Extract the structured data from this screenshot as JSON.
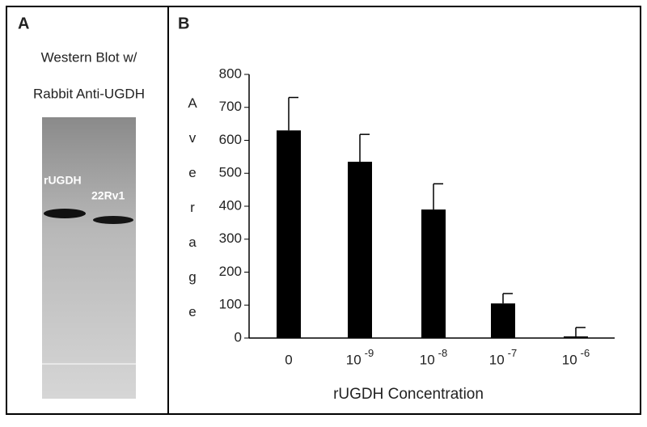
{
  "panel_a": {
    "label": "A",
    "title_lines": [
      "Western Blot w/",
      "Rabbit Anti-UGDH"
    ],
    "band_labels": [
      "rUGDH",
      "22Rv1"
    ]
  },
  "panel_b": {
    "label": "B"
  },
  "chart_data": {
    "type": "bar",
    "x_label": "rUGDH Concentration",
    "y_label": "Average",
    "categories": [
      "0",
      "10 -9",
      "10 -8",
      "10 -7",
      "10 -6"
    ],
    "values": [
      630,
      535,
      390,
      105,
      5
    ],
    "errors": [
      100,
      83,
      78,
      30,
      27
    ],
    "color": "#000000",
    "ylim": [
      0,
      800
    ],
    "yticks": [
      0,
      100,
      200,
      300,
      400,
      500,
      600,
      700,
      800
    ],
    "grid": false
  }
}
